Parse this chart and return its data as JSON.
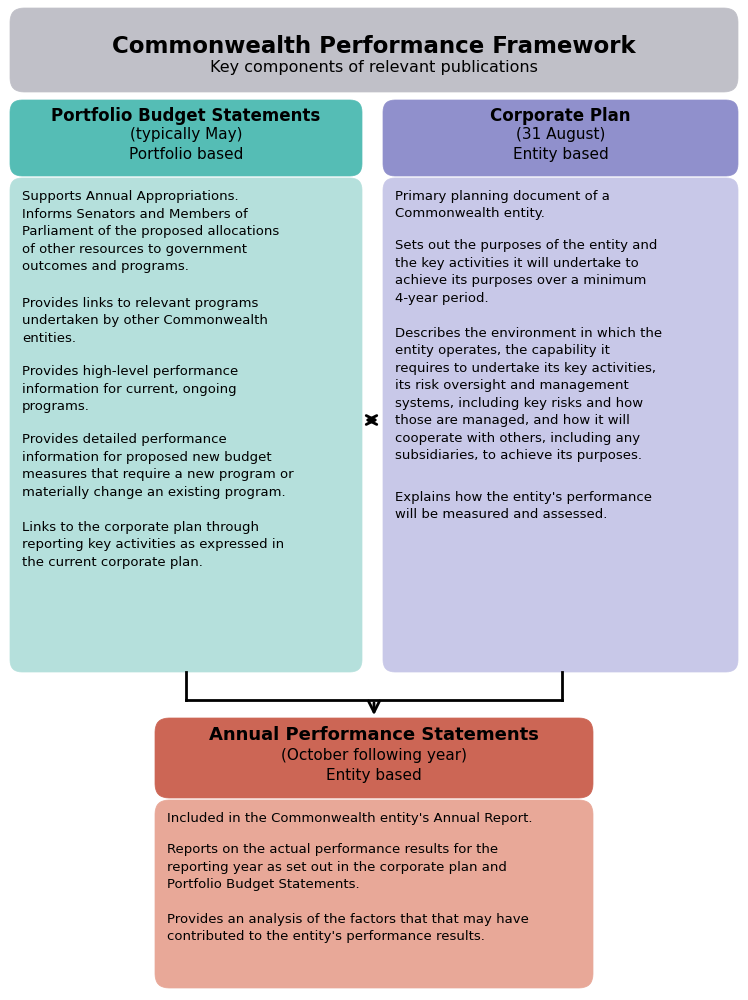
{
  "title": "Commonwealth Performance Framework",
  "subtitle": "Key components of relevant publications",
  "title_bg": "#c0c0c8",
  "title_color": "#000000",
  "pbs_header_title": "Portfolio Budget Statements",
  "pbs_header_sub1": "(typically May)",
  "pbs_header_sub2": "Portfolio based",
  "pbs_header_bg": "#55bdb5",
  "pbs_body_bg": "#b5e0dc",
  "corp_header_title": "Corporate Plan",
  "corp_header_sub1": "(31 August)",
  "corp_header_sub2": "Entity based",
  "corp_header_bg": "#9090cc",
  "corp_body_bg": "#c8c8e8",
  "aps_header_title": "Annual Performance Statements",
  "aps_header_sub1": "(October following year)",
  "aps_header_sub2": "Entity based",
  "aps_header_bg": "#cc6655",
  "aps_body_bg": "#e8a898",
  "pbs_body_paragraphs": [
    "Supports Annual Appropriations.\nInforms Senators and Members of\nParliament of the proposed allocations\nof other resources to government\noutcomes and programs.",
    "Provides links to relevant programs\nundertaken by other Commonwealth\nentities.",
    "Provides high-level performance\ninformation for current, ongoing\nprograms.",
    "Provides detailed performance\ninformation for proposed new budget\nmeasures that require a new program or\nmaterially change an existing program.",
    "Links to the corporate plan through\nreporting key activities as expressed in\nthe current corporate plan."
  ],
  "corp_body_paragraphs": [
    "Primary planning document of a\nCommonwealth entity.",
    "Sets out the purposes of the entity and\nthe key activities it will undertake to\nachieve its purposes over a minimum\n4-year period.",
    "Describes the environment in which the\nentity operates, the capability it\nrequires to undertake its key activities,\nits risk oversight and management\nsystems, including key risks and how\nthose are managed, and how it will\ncooperate with others, including any\nsubsidiaries, to achieve its purposes.",
    "Explains how the entity's performance\nwill be measured and assessed."
  ],
  "aps_body_paragraphs": [
    "Included in the Commonwealth entity's Annual Report.",
    "Reports on the actual performance results for the\nreporting year as set out in the corporate plan and\nPortfolio Budget Statements.",
    "Provides an analysis of the factors that that may have\ncontributed to the entity's performance results."
  ],
  "bg_color": "#ffffff",
  "body_font_size": 9.5,
  "header_font_size": 11
}
